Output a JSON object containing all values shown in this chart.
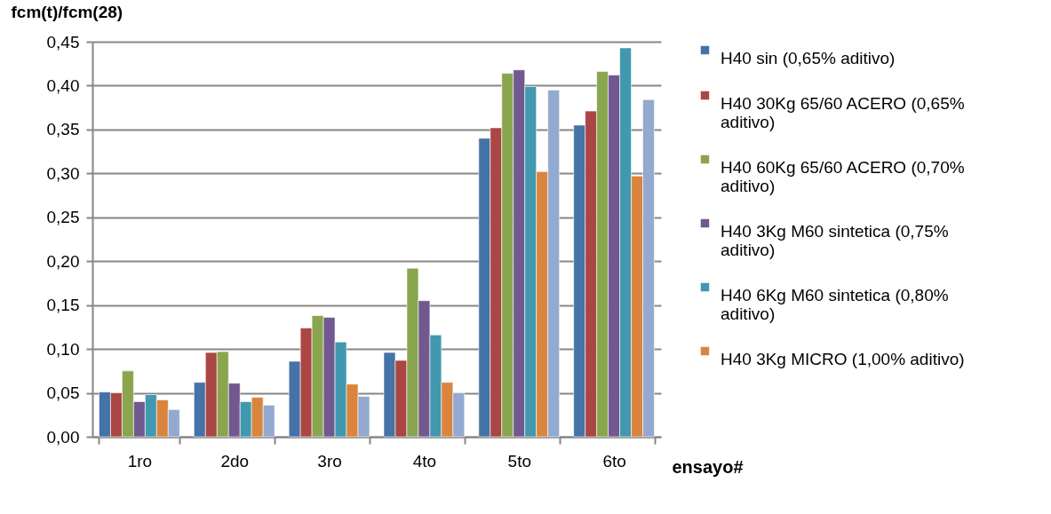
{
  "chart_data": {
    "type": "bar",
    "xlabel": "ensayo#",
    "ylabel": "fcm(t)/fcm(28)",
    "categories": [
      "1ro",
      "2do",
      "3ro",
      "4to",
      "5to",
      "6to"
    ],
    "series": [
      {
        "name": "H40 sin (0,65% aditivo)",
        "color": "#4572a7",
        "values": [
          0.051,
          0.062,
          0.086,
          0.096,
          0.34,
          0.355
        ]
      },
      {
        "name": "H40 30Kg 65/60  ACERO (0,65% aditivo)",
        "color": "#aa4643",
        "values": [
          0.05,
          0.096,
          0.124,
          0.087,
          0.352,
          0.371
        ]
      },
      {
        "name": "H40 60Kg 65/60  ACERO (0,70% aditivo)",
        "color": "#89a54e",
        "values": [
          0.075,
          0.097,
          0.138,
          0.192,
          0.414,
          0.416
        ]
      },
      {
        "name": "H40 3Kg M60 sintetica (0,75% aditivo)",
        "color": "#71588f",
        "values": [
          0.04,
          0.061,
          0.136,
          0.155,
          0.418,
          0.412
        ]
      },
      {
        "name": "H40 6Kg M60 sintetica   (0,80% aditivo)",
        "color": "#4198af",
        "values": [
          0.048,
          0.04,
          0.108,
          0.116,
          0.399,
          0.443
        ]
      },
      {
        "name": "H40 3Kg MICRO  (1,00% aditivo)",
        "color": "#db843d",
        "values": [
          0.042,
          0.045,
          0.06,
          0.062,
          0.302,
          0.297
        ]
      },
      {
        "color": "#93a9cf",
        "values": [
          0.031,
          0.036,
          0.046,
          0.05,
          0.395,
          0.384
        ]
      }
    ],
    "ylim": [
      0,
      0.45
    ],
    "yticks": [
      {
        "value": 0,
        "label": "0,00"
      },
      {
        "value": 0.05,
        "label": "0,05"
      },
      {
        "value": 0.1,
        "label": "0,10"
      },
      {
        "value": 0.15,
        "label": "0,15"
      },
      {
        "value": 0.2,
        "label": "0,20"
      },
      {
        "value": 0.25,
        "label": "0,25"
      },
      {
        "value": 0.3,
        "label": "0,30"
      },
      {
        "value": 0.35,
        "label": "0,35"
      },
      {
        "value": 0.4,
        "label": "0,40"
      },
      {
        "value": 0.45,
        "label": "0,45"
      }
    ],
    "grid": "y",
    "legend": "right"
  }
}
